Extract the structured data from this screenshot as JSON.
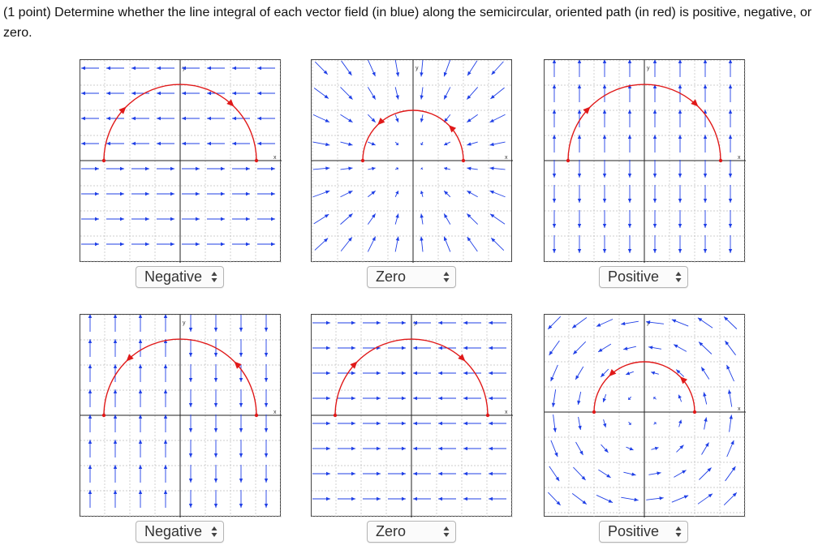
{
  "question": {
    "text": "(1 point) Determine whether the line integral of each vector field (in blue) along the semicircular, oriented path (in red) is positive, negative, or zero."
  },
  "colors": {
    "field": "#1f3fe6",
    "path": "#e01919",
    "grid": "#bdbdbd",
    "axis": "#222222"
  },
  "axis_labels": {
    "x": "x",
    "y": "y"
  },
  "plots": [
    {
      "field": "constant-left-top-right-bottom",
      "path_direction": "clockwise",
      "answer": "Negative"
    },
    {
      "field": "radial-inward",
      "path_direction": "counterclockwise",
      "answer": "Zero"
    },
    {
      "field": "vertical-up-top-down-bottom",
      "path_direction": "clockwise",
      "answer": "Positive"
    },
    {
      "field": "vertical-up-left-down-right",
      "path_direction": "counterclockwise",
      "answer": "Negative"
    },
    {
      "field": "horizontal-right-left-left-right",
      "path_direction": "clockwise",
      "answer": "Zero"
    },
    {
      "field": "rotational-counterclockwise",
      "path_direction": "counterclockwise",
      "answer": "Positive"
    }
  ],
  "answer_options": [
    "?",
    "Positive",
    "Negative",
    "Zero"
  ],
  "selects": [
    {
      "value": "Negative"
    },
    {
      "value": "Zero"
    },
    {
      "value": "Positive"
    },
    {
      "value": "Negative"
    },
    {
      "value": "Zero"
    },
    {
      "value": "Positive"
    }
  ]
}
